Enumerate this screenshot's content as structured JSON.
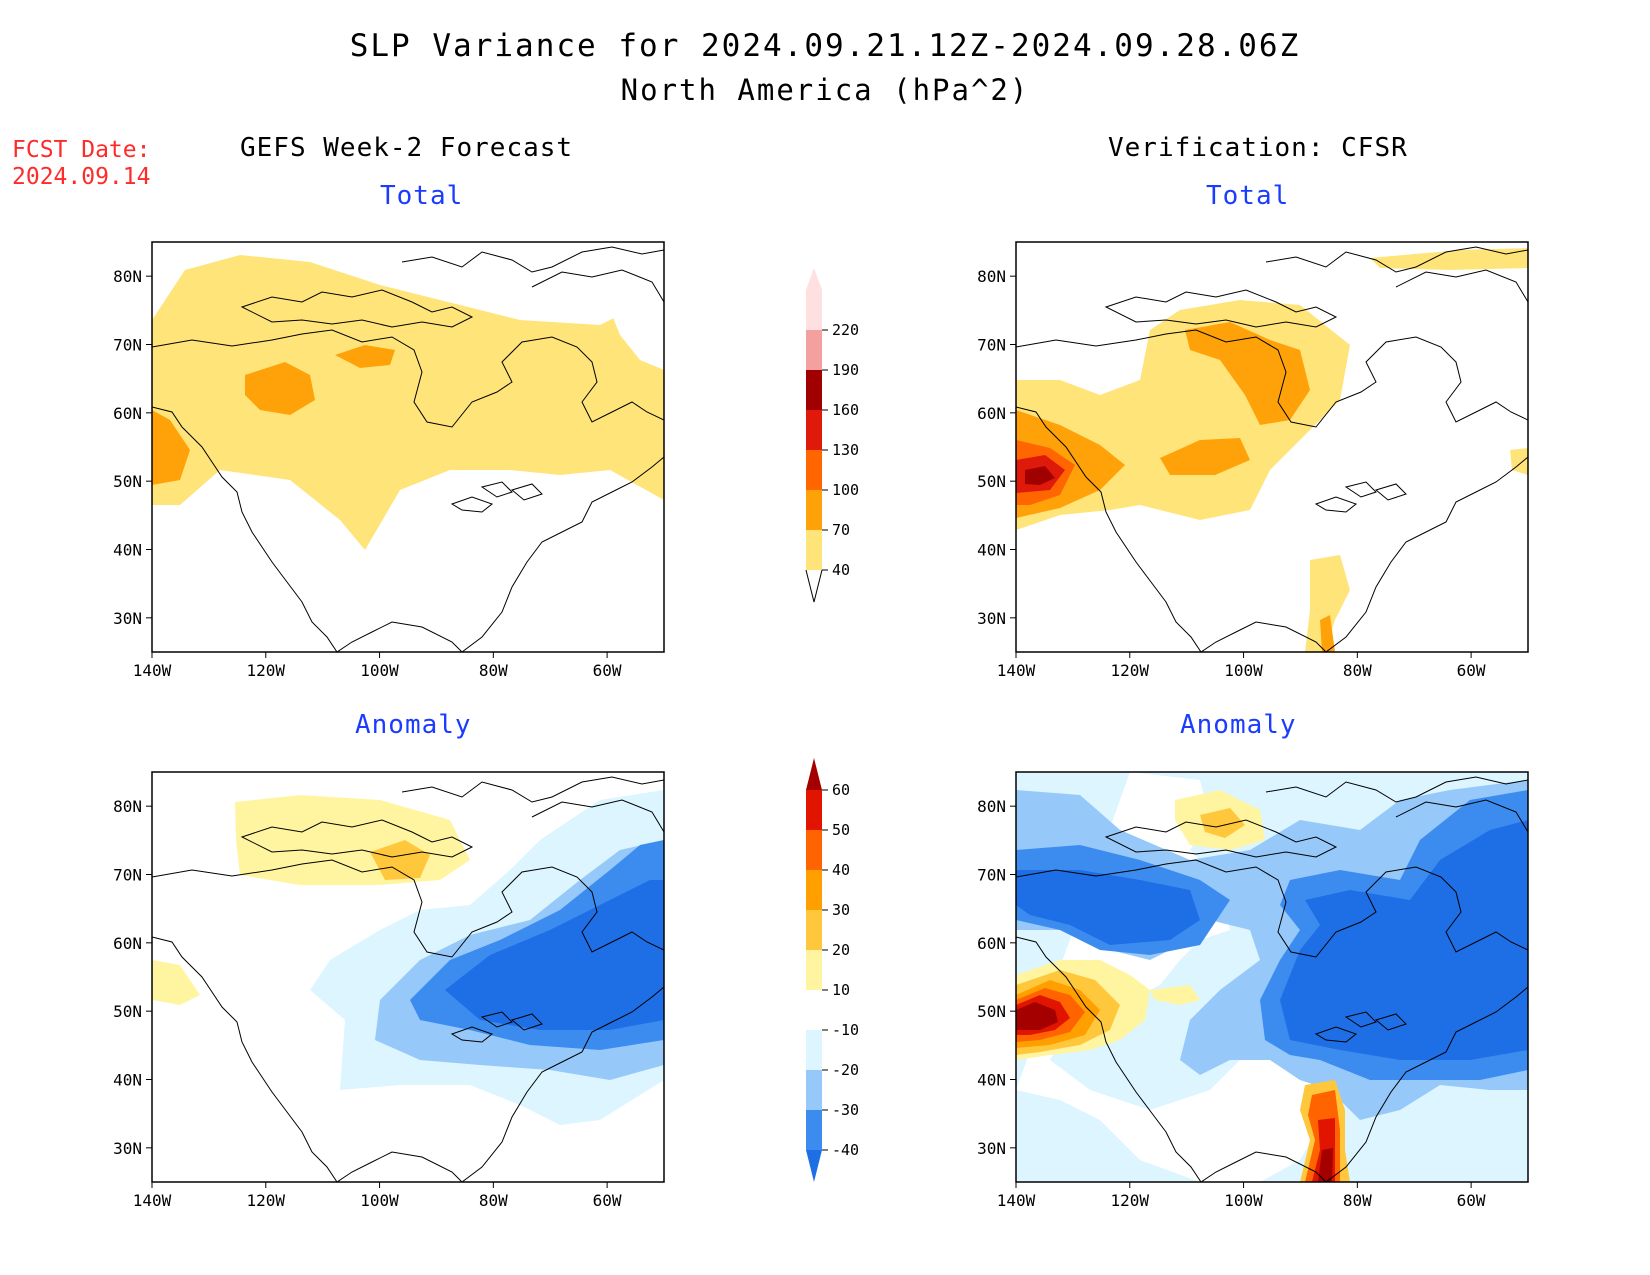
{
  "title": "SLP Variance for 2024.09.21.12Z-2024.09.28.06Z",
  "subtitle": "North America (hPa^2)",
  "fcst_label": "FCST Date:",
  "fcst_date": "2024.09.14",
  "columns": {
    "left": "GEFS Week-2 Forecast",
    "right": "Verification: CFSR"
  },
  "panels": {
    "total": "Total",
    "anomaly": "Anomaly"
  },
  "axes": {
    "lat_labels": [
      "80N",
      "70N",
      "60N",
      "50N",
      "40N",
      "30N"
    ],
    "lon_labels": [
      "140W",
      "120W",
      "100W",
      "80W",
      "60W"
    ],
    "lat_range": [
      25,
      85
    ],
    "lon_range": [
      -140,
      -50
    ]
  },
  "colorbar_total": {
    "levels": [
      "40",
      "70",
      "100",
      "130",
      "160",
      "190",
      "220"
    ],
    "colors": [
      "#ffe47a",
      "#ffa20a",
      "#ff6600",
      "#e01a0a",
      "#a00000",
      "#f4a0a0",
      "#ffe0e0"
    ]
  },
  "colorbar_anomaly": {
    "levels": [
      "-40",
      "-30",
      "-20",
      "-10",
      "10",
      "20",
      "30",
      "40",
      "50",
      "60"
    ],
    "colors": [
      "#1e6ee6",
      "#3c8cf0",
      "#96c8fa",
      "#dcf5ff",
      "#ffffff",
      "#fff5a0",
      "#ffc83c",
      "#ffa000",
      "#ff6400",
      "#e11400",
      "#a50000"
    ]
  }
}
